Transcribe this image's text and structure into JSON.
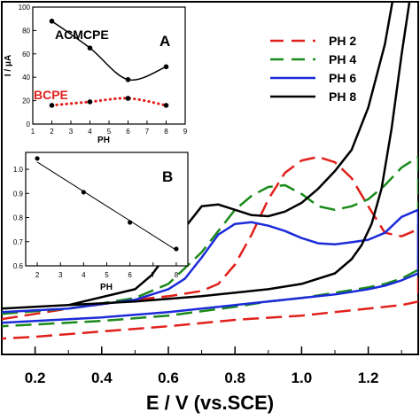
{
  "chart_data": [
    {
      "id": "main",
      "type": "line",
      "xlabel": "E / V (vs.SCE)",
      "xlim": [
        0.1,
        1.35
      ],
      "ylim": [
        0,
        1
      ],
      "xticks": [
        0.2,
        0.4,
        0.6,
        0.8,
        1.0,
        1.2
      ],
      "xtick_labels": [
        "0.2",
        "0.4",
        "0.6",
        "0.8",
        "1.0",
        "1.2"
      ],
      "legend_position": "top-right",
      "series": [
        {
          "name": "PH 2",
          "color": "#e0201b",
          "dash": "dashed",
          "forward": [
            [
              0.1,
              0.1
            ],
            [
              0.3,
              0.13
            ],
            [
              0.5,
              0.155
            ],
            [
              0.6,
              0.165
            ],
            [
              0.7,
              0.18
            ],
            [
              0.75,
              0.2
            ],
            [
              0.8,
              0.255
            ],
            [
              0.85,
              0.34
            ],
            [
              0.9,
              0.44
            ],
            [
              0.95,
              0.515
            ],
            [
              1.0,
              0.55
            ],
            [
              1.05,
              0.56
            ],
            [
              1.1,
              0.545
            ],
            [
              1.15,
              0.5
            ],
            [
              1.2,
              0.42
            ],
            [
              1.25,
              0.345
            ],
            [
              1.3,
              0.335
            ],
            [
              1.35,
              0.355
            ]
          ],
          "return": [
            [
              1.35,
              0.15
            ],
            [
              1.3,
              0.14
            ],
            [
              1.2,
              0.13
            ],
            [
              1.1,
              0.12
            ],
            [
              1.0,
              0.11
            ],
            [
              0.8,
              0.098
            ],
            [
              0.6,
              0.08
            ],
            [
              0.4,
              0.065
            ],
            [
              0.2,
              0.05
            ],
            [
              0.1,
              0.045
            ]
          ]
        },
        {
          "name": "PH 4",
          "color": "#1a8a1a",
          "dash": "dashed",
          "forward": [
            [
              0.1,
              0.115
            ],
            [
              0.3,
              0.13
            ],
            [
              0.5,
              0.16
            ],
            [
              0.6,
              0.2
            ],
            [
              0.7,
              0.29
            ],
            [
              0.75,
              0.35
            ],
            [
              0.8,
              0.41
            ],
            [
              0.85,
              0.45
            ],
            [
              0.9,
              0.475
            ],
            [
              0.95,
              0.48
            ],
            [
              1.0,
              0.455
            ],
            [
              1.05,
              0.42
            ],
            [
              1.1,
              0.41
            ],
            [
              1.15,
              0.42
            ],
            [
              1.2,
              0.44
            ],
            [
              1.25,
              0.48
            ],
            [
              1.3,
              0.53
            ],
            [
              1.35,
              0.56
            ]
          ],
          "return": [
            [
              1.35,
              0.24
            ],
            [
              1.3,
              0.215
            ],
            [
              1.25,
              0.2
            ],
            [
              1.2,
              0.19
            ],
            [
              1.1,
              0.175
            ],
            [
              1.0,
              0.16
            ],
            [
              0.9,
              0.15
            ],
            [
              0.8,
              0.135
            ],
            [
              0.6,
              0.11
            ],
            [
              0.4,
              0.095
            ],
            [
              0.2,
              0.085
            ],
            [
              0.1,
              0.08
            ]
          ]
        },
        {
          "name": "PH 6",
          "color": "#1b2bd8",
          "dash": "solid",
          "forward": [
            [
              0.1,
              0.12
            ],
            [
              0.3,
              0.13
            ],
            [
              0.5,
              0.155
            ],
            [
              0.6,
              0.185
            ],
            [
              0.65,
              0.215
            ],
            [
              0.7,
              0.275
            ],
            [
              0.75,
              0.34
            ],
            [
              0.8,
              0.37
            ],
            [
              0.85,
              0.375
            ],
            [
              0.9,
              0.365
            ],
            [
              0.95,
              0.35
            ],
            [
              1.0,
              0.33
            ],
            [
              1.05,
              0.315
            ],
            [
              1.1,
              0.312
            ],
            [
              1.15,
              0.318
            ],
            [
              1.2,
              0.325
            ],
            [
              1.25,
              0.345
            ],
            [
              1.3,
              0.39
            ],
            [
              1.35,
              0.41
            ]
          ],
          "return": [
            [
              1.35,
              0.23
            ],
            [
              1.3,
              0.21
            ],
            [
              1.25,
              0.195
            ],
            [
              1.2,
              0.185
            ],
            [
              1.1,
              0.17
            ],
            [
              1.0,
              0.16
            ],
            [
              0.9,
              0.15
            ],
            [
              0.8,
              0.14
            ],
            [
              0.6,
              0.12
            ],
            [
              0.4,
              0.105
            ],
            [
              0.2,
              0.095
            ],
            [
              0.1,
              0.09
            ]
          ]
        },
        {
          "name": "PH 8",
          "color": "#000000",
          "dash": "solid",
          "forward": [
            [
              0.1,
              0.13
            ],
            [
              0.3,
              0.14
            ],
            [
              0.5,
              0.185
            ],
            [
              0.55,
              0.225
            ],
            [
              0.6,
              0.29
            ],
            [
              0.65,
              0.36
            ],
            [
              0.7,
              0.42
            ],
            [
              0.75,
              0.425
            ],
            [
              0.8,
              0.41
            ],
            [
              0.85,
              0.395
            ],
            [
              0.9,
              0.392
            ],
            [
              0.95,
              0.405
            ],
            [
              1.0,
              0.43
            ],
            [
              1.05,
              0.47
            ],
            [
              1.1,
              0.52
            ],
            [
              1.15,
              0.58
            ],
            [
              1.2,
              0.7
            ],
            [
              1.25,
              0.88
            ],
            [
              1.28,
              1.04
            ]
          ],
          "return": [
            [
              1.33,
              1.04
            ],
            [
              1.3,
              0.85
            ],
            [
              1.27,
              0.64
            ],
            [
              1.24,
              0.47
            ],
            [
              1.21,
              0.37
            ],
            [
              1.18,
              0.31
            ],
            [
              1.15,
              0.27
            ],
            [
              1.1,
              0.23
            ],
            [
              1.0,
              0.2
            ],
            [
              0.9,
              0.185
            ],
            [
              0.7,
              0.165
            ],
            [
              0.5,
              0.15
            ],
            [
              0.3,
              0.14
            ],
            [
              0.1,
              0.13
            ]
          ]
        }
      ]
    },
    {
      "id": "inset-a",
      "type": "line",
      "panel_label": "A",
      "xlabel": "PH",
      "ylabel": "I / μA",
      "xlim": [
        1,
        9
      ],
      "ylim": [
        0,
        100
      ],
      "xticks": [
        1,
        2,
        3,
        4,
        5,
        6,
        7,
        8,
        9
      ],
      "xtick_labels": [
        "1",
        "2",
        "3",
        "4",
        "5",
        "6",
        "7",
        "8",
        "9"
      ],
      "yticks": [
        0,
        20,
        40,
        60,
        80,
        100
      ],
      "ytick_labels": [
        "0",
        "20",
        "40",
        "60",
        "80",
        "100"
      ],
      "series": [
        {
          "name": "ACMCPE",
          "color": "#000000",
          "dash": "solid",
          "x": [
            2,
            4,
            6,
            8
          ],
          "y": [
            88,
            65,
            38,
            49
          ]
        },
        {
          "name": "BCPE",
          "color": "#e0201b",
          "dash": "dotted",
          "x": [
            2,
            4,
            6,
            8
          ],
          "y": [
            16,
            19,
            22,
            16
          ]
        }
      ]
    },
    {
      "id": "inset-b",
      "type": "scatter",
      "panel_label": "B",
      "xlabel": "PH",
      "xlim": [
        1.5,
        8.5
      ],
      "ylim": [
        0.6,
        1.07
      ],
      "xticks": [
        2,
        3,
        4,
        5,
        6,
        7,
        8
      ],
      "xtick_labels": [
        "2",
        "3",
        "4",
        "5",
        "6",
        "7",
        "8"
      ],
      "yticks": [
        0.6,
        0.7,
        0.8,
        0.9,
        1.0
      ],
      "ytick_labels": [
        "0.6",
        "0.7",
        "0.8",
        "0.9",
        "1.0"
      ],
      "series": [
        {
          "x": [
            2,
            4,
            6,
            8
          ],
          "y": [
            1.045,
            0.905,
            0.78,
            0.67
          ],
          "color": "#000000"
        }
      ],
      "fit_line": {
        "x": [
          2,
          8
        ],
        "y": [
          1.03,
          0.665
        ]
      }
    }
  ]
}
